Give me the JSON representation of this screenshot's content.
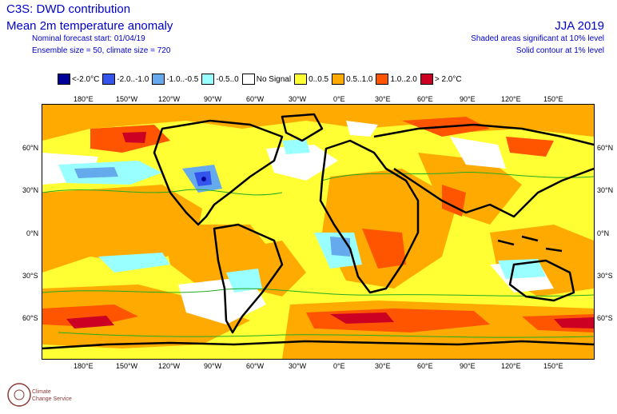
{
  "header": {
    "title": "C3S: DWD contribution",
    "subtitle": "Mean 2m temperature anomaly",
    "forecast_start": "Nominal forecast start: 01/04/19",
    "ensemble": "Ensemble size = 50, climate size = 720",
    "period": "JJA 2019",
    "significance_shaded": "Shaded areas significant at 10% level",
    "significance_contour": "Solid contour at 1% level"
  },
  "legend": [
    {
      "label": "<-2.0°C",
      "color": "#000099"
    },
    {
      "label": "-2.0..-1.0",
      "color": "#3355ee"
    },
    {
      "label": "-1.0..-0.5",
      "color": "#66aaee"
    },
    {
      "label": "-0.5..0",
      "color": "#99ffff"
    },
    {
      "label": "No Signal",
      "color": "#ffffff"
    },
    {
      "label": "0..0.5",
      "color": "#ffff33"
    },
    {
      "label": "0.5..1.0",
      "color": "#ffaa00"
    },
    {
      "label": "1.0..2.0",
      "color": "#ff5500"
    },
    {
      "label": "> 2.0°C",
      "color": "#cc0022"
    }
  ],
  "axes": {
    "lon_labels": [
      "180°E",
      "150°W",
      "120°W",
      "90°W",
      "60°W",
      "30°W",
      "0°E",
      "30°E",
      "60°E",
      "90°E",
      "120°E",
      "150°E"
    ],
    "lat_labels": [
      "60°N",
      "30°N",
      "0°N",
      "30°S",
      "60°S"
    ]
  },
  "logo": {
    "line1": "Climate",
    "line2": "Change Service"
  }
}
